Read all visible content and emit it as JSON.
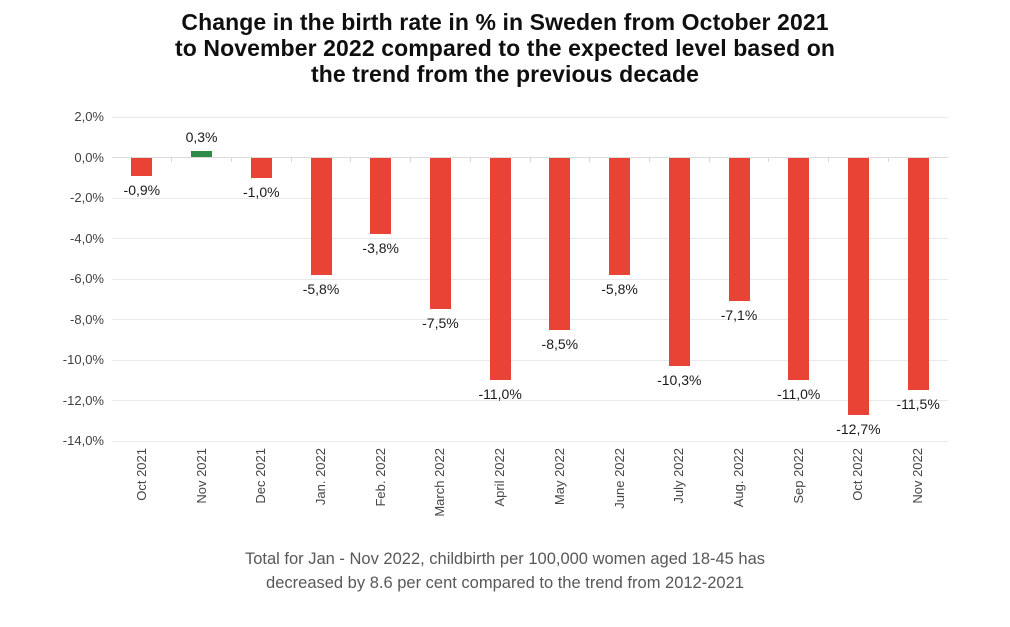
{
  "chart": {
    "title_lines": [
      "Change in the birth rate in % in Sweden from October 2021",
      "to November 2022 compared to the expected level based on",
      "the trend from the previous decade"
    ],
    "footnote_lines": [
      "Total for Jan - Nov 2022, childbirth per 100,000 women aged 18-45 has",
      "decreased by 8.6 per cent compared to the trend from 2012-2021"
    ],
    "colors": {
      "background": "#ffffff",
      "bar_negative": "#e94335",
      "bar_positive": "#2e8b4a",
      "gridline": "#e9e9e9",
      "zero_line": "#dadada",
      "axis_tick": "#d6d6d6",
      "title_text": "#0f0f0f",
      "value_label_text": "#1a1a1a",
      "y_axis_text": "#404040",
      "x_axis_text": "#464646",
      "footnote_text": "#58585a"
    }
  },
  "chart_data": {
    "type": "bar",
    "title": "Change in the birth rate in % in Sweden from October 2021 to November 2022 compared to the expected level based on the trend from the previous decade",
    "footnote": "Total for Jan - Nov 2022, childbirth per 100,000 women aged 18-45 has decreased by 8.6 per cent compared to the trend from 2012-2021",
    "unit": "%",
    "categories": [
      "Oct 2021",
      "Nov 2021",
      "Dec 2021",
      "Jan. 2022",
      "Feb. 2022",
      "March 2022",
      "April 2022",
      "May 2022",
      "June 2022",
      "July 2022",
      "Aug. 2022",
      "Sep 2022",
      "Oct 2022",
      "Nov 2022"
    ],
    "values": [
      -0.9,
      0.3,
      -1.0,
      -5.8,
      -3.8,
      -7.5,
      -11.0,
      -8.5,
      -5.8,
      -10.3,
      -7.1,
      -11.0,
      -12.7,
      -11.5
    ],
    "value_labels": [
      "-0,9%",
      "0,3%",
      "-1,0%",
      "-5,8%",
      "-3,8%",
      "-7,5%",
      "-11,0%",
      "-8,5%",
      "-5,8%",
      "-10,3%",
      "-7,1%",
      "-11,0%",
      "-12,7%",
      "-11,5%"
    ],
    "positive_value_index": 1,
    "y_axis": {
      "tick_values": [
        2,
        0,
        -2,
        -4,
        -6,
        -8,
        -10,
        -12,
        -14
      ],
      "tick_labels": [
        "2,0%",
        "0,0%",
        "-2,0%",
        "-4,0%",
        "-6,0%",
        "-8,0%",
        "-10,0%",
        "-12,0%",
        "-14,0%"
      ]
    },
    "ylim": [
      -14,
      2
    ],
    "grid": true,
    "legend": "none"
  }
}
